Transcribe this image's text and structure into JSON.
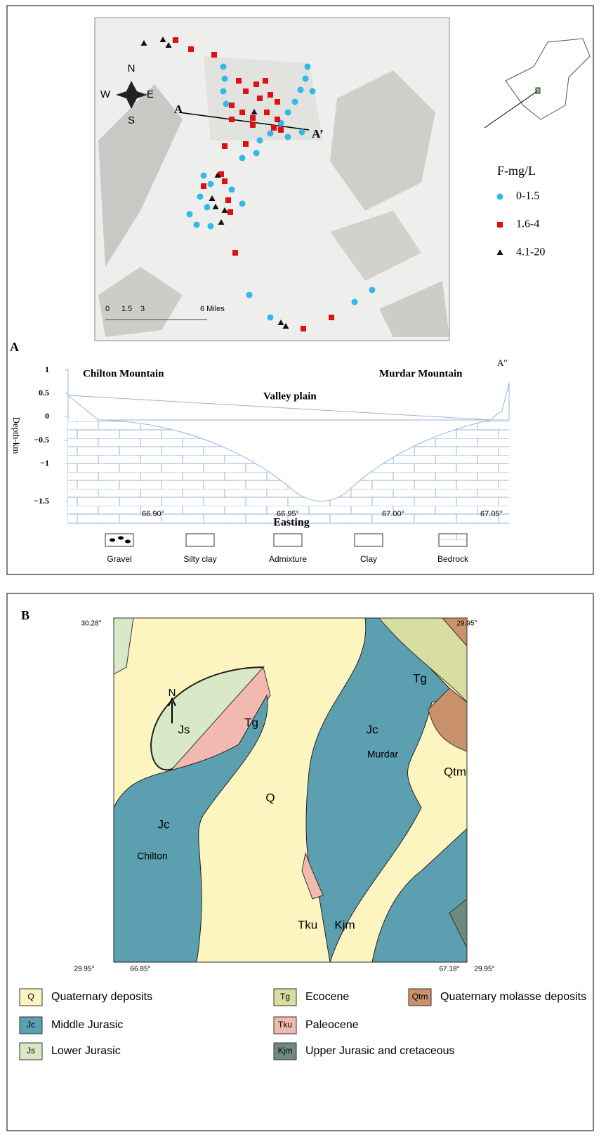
{
  "panel_a": {
    "label": "A",
    "compass": [
      "N",
      "E",
      "S",
      "W"
    ],
    "section_ends": [
      "A",
      "A’"
    ],
    "scale": [
      "0",
      "1.5",
      "3",
      "6 Miles"
    ],
    "legend": {
      "title": "F-mg/L",
      "items": [
        "0-1.5",
        "1.6-4",
        "4.1-20"
      ]
    },
    "section": {
      "left": "Chilton Mountain",
      "right": "Murdar Mountain",
      "center": "Valley plain",
      "end_label": "A″",
      "y_label": "Depth-km",
      "x_label": "Easting",
      "yticks": [
        "1",
        "0.5",
        "0",
        "−0.5",
        "−1",
        "−1.5"
      ],
      "xticks": [
        "66.90°",
        "66.95°",
        "67.00°",
        "67.05°"
      ]
    },
    "lithology": [
      "Gravel",
      "Silty clay",
      "Admixture",
      "Clay",
      "Bedrock"
    ]
  },
  "panel_b": {
    "label": "B",
    "north": "N",
    "corners": [
      "30.28°",
      "29.95°",
      "29.95°",
      "66.85°",
      "67.18°",
      "29.95°"
    ],
    "units": [
      "Js",
      "Tg",
      "Jc",
      "Murdar",
      "Q",
      "Jc",
      "Chilton",
      "Tku",
      "Kjm",
      "Tg",
      "Qtm"
    ],
    "legend": [
      {
        "code": "Q",
        "name": "Quaternary deposits"
      },
      {
        "code": "Jc",
        "name": "Middle Jurasic"
      },
      {
        "code": "Js",
        "name": "Lower Jurasic"
      },
      {
        "code": "Tg",
        "name": "Ecocene"
      },
      {
        "code": "Tku",
        "name": "Paleocene"
      },
      {
        "code": "Kjm",
        "name": "Upper Jurasic and cretaceous"
      },
      {
        "code": "Qtm",
        "name": "Quaternary molasse deposits"
      }
    ]
  }
}
